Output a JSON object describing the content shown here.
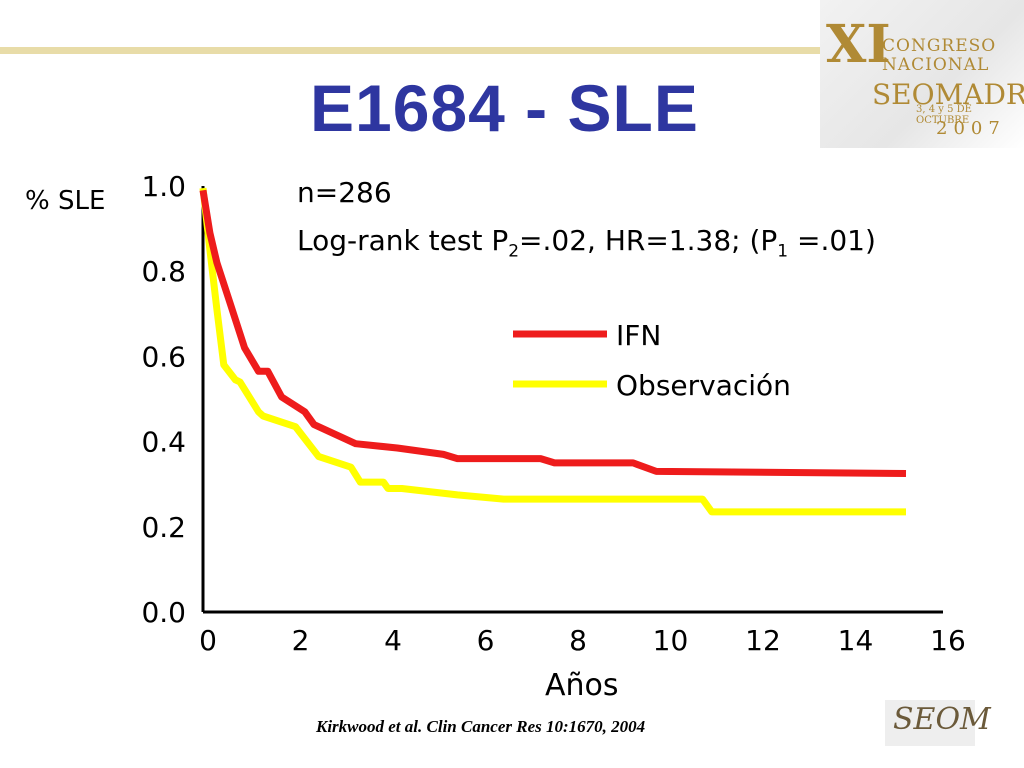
{
  "slide": {
    "title": "E1684 - SLE",
    "citation": "Kirkwood et al. Clin Cancer Res 10:1670, 2004"
  },
  "logo_top": {
    "numeral": "XI",
    "line1": "CONGRESO",
    "line2": "NACIONAL",
    "line3": "SEOMADRID",
    "dates": "3, 4 y 5 DE OCTUBRE",
    "year": "2007"
  },
  "logo_bottom": {
    "text": "SEOM"
  },
  "annotation": {
    "n": "n=286",
    "logrank_pre": "Log-rank test P",
    "logrank_sub1": "2",
    "logrank_mid": "=.02, HR=1.38; (P",
    "logrank_sub2": "1",
    "logrank_post": " =.01)"
  },
  "chart_data": {
    "type": "line",
    "title": "E1684 - SLE",
    "xlabel": "Años",
    "ylabel": "% SLE",
    "xlim": [
      0,
      16
    ],
    "ylim": [
      0,
      1.0
    ],
    "xticks": [
      "0",
      "2",
      "4",
      "6",
      "8",
      "10",
      "12",
      "14",
      "16"
    ],
    "yticks": [
      "0.0",
      "0.2",
      "0.4",
      "0.6",
      "0.8",
      "1.0"
    ],
    "legend_position": "center-right",
    "series": [
      {
        "name": "IFN",
        "color": "#ee1c1c",
        "x": [
          0,
          0.15,
          0.3,
          0.6,
          0.9,
          1.2,
          1.4,
          1.7,
          2.2,
          2.4,
          2.9,
          3.3,
          4.2,
          5.2,
          5.5,
          7.3,
          7.6,
          9.3,
          9.8,
          15.2
        ],
        "y": [
          0.99,
          0.89,
          0.82,
          0.72,
          0.62,
          0.565,
          0.565,
          0.505,
          0.47,
          0.44,
          0.415,
          0.395,
          0.385,
          0.37,
          0.36,
          0.36,
          0.35,
          0.35,
          0.33,
          0.325
        ]
      },
      {
        "name": "Observación",
        "color": "#ffff00",
        "x": [
          0,
          0.15,
          0.3,
          0.45,
          0.7,
          0.8,
          1.2,
          1.3,
          2.0,
          2.5,
          3.2,
          3.4,
          3.9,
          4.0,
          4.3,
          5.5,
          6.5,
          10.8,
          11.0,
          15.2
        ],
        "y": [
          0.995,
          0.85,
          0.71,
          0.58,
          0.545,
          0.54,
          0.47,
          0.46,
          0.435,
          0.365,
          0.34,
          0.305,
          0.305,
          0.29,
          0.29,
          0.275,
          0.265,
          0.265,
          0.235,
          0.235
        ]
      }
    ]
  }
}
